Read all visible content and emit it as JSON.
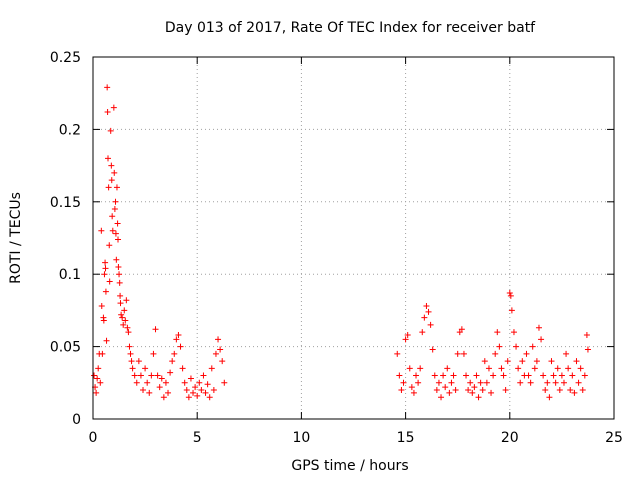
{
  "chart_data": {
    "type": "scatter",
    "title": "Day 013 of 2017, Rate Of TEC Index for receiver batf",
    "xlabel": "GPS time / hours",
    "ylabel": "ROTI / TECUs",
    "xlim": [
      0,
      25
    ],
    "ylim": [
      0,
      0.25
    ],
    "x_ticks": [
      "0",
      "5",
      "10",
      "15",
      "20",
      "25"
    ],
    "y_ticks": [
      "0",
      "0.05",
      "0.1",
      "0.15",
      "0.2",
      "0.25"
    ],
    "grid": true,
    "marker": "+",
    "series": [
      {
        "color": "#ff0000",
        "points": [
          [
            0.05,
            0.03
          ],
          [
            0.1,
            0.022
          ],
          [
            0.15,
            0.018
          ],
          [
            0.2,
            0.028
          ],
          [
            0.25,
            0.035
          ],
          [
            0.3,
            0.045
          ],
          [
            0.35,
            0.025
          ],
          [
            0.4,
            0.13
          ],
          [
            0.42,
            0.078
          ],
          [
            0.45,
            0.045
          ],
          [
            0.5,
            0.07
          ],
          [
            0.52,
            0.068
          ],
          [
            0.55,
            0.1
          ],
          [
            0.58,
            0.108
          ],
          [
            0.6,
            0.104
          ],
          [
            0.62,
            0.088
          ],
          [
            0.65,
            0.054
          ],
          [
            0.68,
            0.229
          ],
          [
            0.7,
            0.212
          ],
          [
            0.72,
            0.18
          ],
          [
            0.75,
            0.16
          ],
          [
            0.78,
            0.12
          ],
          [
            0.8,
            0.095
          ],
          [
            0.85,
            0.199
          ],
          [
            0.88,
            0.175
          ],
          [
            0.9,
            0.165
          ],
          [
            0.92,
            0.14
          ],
          [
            0.95,
            0.13
          ],
          [
            1.0,
            0.215
          ],
          [
            1.02,
            0.17
          ],
          [
            1.05,
            0.145
          ],
          [
            1.08,
            0.15
          ],
          [
            1.1,
            0.128
          ],
          [
            1.12,
            0.11
          ],
          [
            1.15,
            0.16
          ],
          [
            1.18,
            0.135
          ],
          [
            1.2,
            0.124
          ],
          [
            1.22,
            0.105
          ],
          [
            1.25,
            0.1
          ],
          [
            1.28,
            0.094
          ],
          [
            1.3,
            0.085
          ],
          [
            1.32,
            0.08
          ],
          [
            1.35,
            0.072
          ],
          [
            1.4,
            0.07
          ],
          [
            1.45,
            0.065
          ],
          [
            1.5,
            0.075
          ],
          [
            1.55,
            0.068
          ],
          [
            1.6,
            0.082
          ],
          [
            1.65,
            0.063
          ],
          [
            1.7,
            0.06
          ],
          [
            1.75,
            0.05
          ],
          [
            1.8,
            0.045
          ],
          [
            1.85,
            0.04
          ],
          [
            1.9,
            0.035
          ],
          [
            2.0,
            0.03
          ],
          [
            2.1,
            0.025
          ],
          [
            2.2,
            0.04
          ],
          [
            2.3,
            0.03
          ],
          [
            2.4,
            0.02
          ],
          [
            2.5,
            0.035
          ],
          [
            2.6,
            0.025
          ],
          [
            2.7,
            0.018
          ],
          [
            2.8,
            0.03
          ],
          [
            2.9,
            0.045
          ],
          [
            3.0,
            0.062
          ],
          [
            3.1,
            0.03
          ],
          [
            3.2,
            0.022
          ],
          [
            3.3,
            0.028
          ],
          [
            3.4,
            0.015
          ],
          [
            3.5,
            0.025
          ],
          [
            3.6,
            0.018
          ],
          [
            3.7,
            0.032
          ],
          [
            3.8,
            0.04
          ],
          [
            3.9,
            0.045
          ],
          [
            4.0,
            0.055
          ],
          [
            4.1,
            0.058
          ],
          [
            4.2,
            0.05
          ],
          [
            4.3,
            0.035
          ],
          [
            4.4,
            0.025
          ],
          [
            4.5,
            0.02
          ],
          [
            4.6,
            0.015
          ],
          [
            4.7,
            0.028
          ],
          [
            4.8,
            0.018
          ],
          [
            4.9,
            0.022
          ],
          [
            5.0,
            0.016
          ],
          [
            5.1,
            0.025
          ],
          [
            5.2,
            0.02
          ],
          [
            5.3,
            0.03
          ],
          [
            5.4,
            0.018
          ],
          [
            5.5,
            0.024
          ],
          [
            5.6,
            0.015
          ],
          [
            5.7,
            0.035
          ],
          [
            5.8,
            0.02
          ],
          [
            5.9,
            0.045
          ],
          [
            6.0,
            0.055
          ],
          [
            6.1,
            0.048
          ],
          [
            6.2,
            0.04
          ],
          [
            6.3,
            0.025
          ],
          [
            14.6,
            0.045
          ],
          [
            14.7,
            0.03
          ],
          [
            14.8,
            0.02
          ],
          [
            14.9,
            0.025
          ],
          [
            15.0,
            0.055
          ],
          [
            15.1,
            0.058
          ],
          [
            15.2,
            0.035
          ],
          [
            15.3,
            0.022
          ],
          [
            15.4,
            0.018
          ],
          [
            15.5,
            0.03
          ],
          [
            15.6,
            0.025
          ],
          [
            15.7,
            0.035
          ],
          [
            15.8,
            0.06
          ],
          [
            15.9,
            0.07
          ],
          [
            16.0,
            0.078
          ],
          [
            16.1,
            0.074
          ],
          [
            16.2,
            0.065
          ],
          [
            16.3,
            0.048
          ],
          [
            16.4,
            0.03
          ],
          [
            16.5,
            0.02
          ],
          [
            16.6,
            0.025
          ],
          [
            16.7,
            0.015
          ],
          [
            16.8,
            0.03
          ],
          [
            16.9,
            0.022
          ],
          [
            17.0,
            0.035
          ],
          [
            17.1,
            0.018
          ],
          [
            17.2,
            0.025
          ],
          [
            17.3,
            0.03
          ],
          [
            17.4,
            0.02
          ],
          [
            17.5,
            0.045
          ],
          [
            17.6,
            0.06
          ],
          [
            17.7,
            0.062
          ],
          [
            17.8,
            0.045
          ],
          [
            17.9,
            0.03
          ],
          [
            18.0,
            0.02
          ],
          [
            18.1,
            0.025
          ],
          [
            18.2,
            0.018
          ],
          [
            18.3,
            0.022
          ],
          [
            18.4,
            0.03
          ],
          [
            18.5,
            0.015
          ],
          [
            18.6,
            0.025
          ],
          [
            18.7,
            0.02
          ],
          [
            18.8,
            0.04
          ],
          [
            18.9,
            0.025
          ],
          [
            19.0,
            0.035
          ],
          [
            19.1,
            0.018
          ],
          [
            19.2,
            0.03
          ],
          [
            19.3,
            0.045
          ],
          [
            19.4,
            0.06
          ],
          [
            19.5,
            0.05
          ],
          [
            19.6,
            0.035
          ],
          [
            19.7,
            0.03
          ],
          [
            19.8,
            0.02
          ],
          [
            19.9,
            0.04
          ],
          [
            20.0,
            0.087
          ],
          [
            20.05,
            0.085
          ],
          [
            20.1,
            0.075
          ],
          [
            20.2,
            0.06
          ],
          [
            20.3,
            0.05
          ],
          [
            20.4,
            0.035
          ],
          [
            20.5,
            0.025
          ],
          [
            20.6,
            0.04
          ],
          [
            20.7,
            0.03
          ],
          [
            20.8,
            0.045
          ],
          [
            20.9,
            0.03
          ],
          [
            21.0,
            0.025
          ],
          [
            21.1,
            0.05
          ],
          [
            21.2,
            0.035
          ],
          [
            21.3,
            0.04
          ],
          [
            21.4,
            0.063
          ],
          [
            21.5,
            0.055
          ],
          [
            21.6,
            0.03
          ],
          [
            21.7,
            0.02
          ],
          [
            21.8,
            0.025
          ],
          [
            21.9,
            0.015
          ],
          [
            22.0,
            0.04
          ],
          [
            22.1,
            0.03
          ],
          [
            22.2,
            0.025
          ],
          [
            22.3,
            0.035
          ],
          [
            22.4,
            0.02
          ],
          [
            22.5,
            0.03
          ],
          [
            22.6,
            0.025
          ],
          [
            22.7,
            0.045
          ],
          [
            22.8,
            0.035
          ],
          [
            22.9,
            0.02
          ],
          [
            23.0,
            0.03
          ],
          [
            23.1,
            0.018
          ],
          [
            23.2,
            0.04
          ],
          [
            23.3,
            0.025
          ],
          [
            23.4,
            0.035
          ],
          [
            23.5,
            0.02
          ],
          [
            23.6,
            0.03
          ],
          [
            23.7,
            0.058
          ],
          [
            23.75,
            0.048
          ]
        ]
      }
    ]
  }
}
